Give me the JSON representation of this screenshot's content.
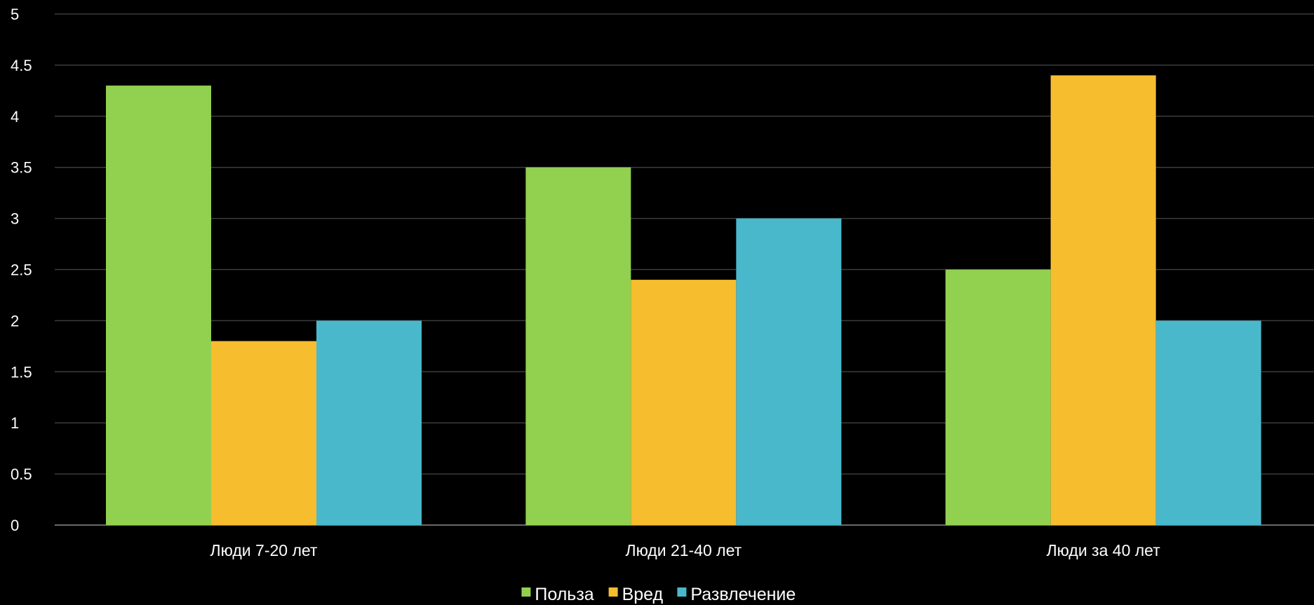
{
  "chart_data": {
    "type": "bar",
    "title": "",
    "xlabel": "",
    "ylabel": "",
    "categories": [
      "Люди 7-20 лет",
      "Люди 21-40 лет",
      "Люди за 40 лет"
    ],
    "series": [
      {
        "name": "Польза",
        "color": "#92d050",
        "values": [
          4.3,
          3.5,
          2.5
        ]
      },
      {
        "name": "Вред",
        "color": "#f6bd2e",
        "values": [
          1.8,
          2.4,
          4.4
        ]
      },
      {
        "name": "Развлечение",
        "color": "#4ab8cb",
        "values": [
          2.0,
          3.0,
          2.0
        ]
      }
    ],
    "ylim": [
      0,
      5
    ],
    "yticks": [
      "0",
      "0.5",
      "1",
      "1.5",
      "2",
      "2.5",
      "3",
      "3.5",
      "4",
      "4.5",
      "5"
    ],
    "grid": true,
    "legend_position": "bottom",
    "background": "#000000"
  }
}
